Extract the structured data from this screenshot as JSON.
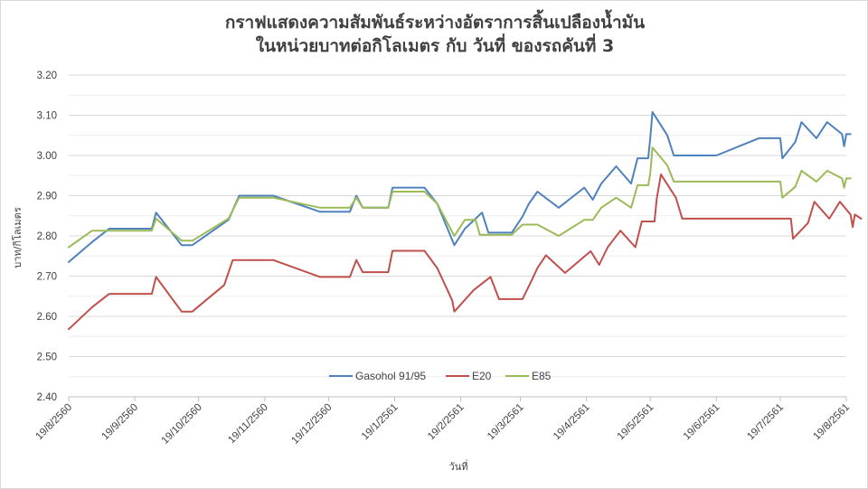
{
  "chart_data": {
    "type": "line",
    "title": [
      "กราฟแสดงความสัมพันธ์ระหว่างอัตราการสิ้นเปลืองน้ำมัน",
      "ในหน่วยบาทต่อกิโลเมตร  กับ วันที่  ของรถคันที่ 3"
    ],
    "xlabel": "วันที่",
    "ylabel": "บาท/กิโลเมตร",
    "ylim": [
      2.4,
      3.2
    ],
    "xlim": [
      "2017-08-19",
      "2018-08-19"
    ],
    "y_ticks": [
      "2.40",
      "2.50",
      "2.60",
      "2.70",
      "2.80",
      "2.90",
      "3.00",
      "3.10",
      "3.20"
    ],
    "x_ticks": [
      {
        "date": "2017-08-19",
        "label": "19/8/2560"
      },
      {
        "date": "2017-09-19",
        "label": "19/9/2560"
      },
      {
        "date": "2017-10-19",
        "label": "19/10/2560"
      },
      {
        "date": "2017-11-19",
        "label": "19/11/2560"
      },
      {
        "date": "2017-12-19",
        "label": "19/12/2560"
      },
      {
        "date": "2018-01-19",
        "label": "19/1/2561"
      },
      {
        "date": "2018-02-19",
        "label": "19/2/2561"
      },
      {
        "date": "2018-03-19",
        "label": "19/3/2561"
      },
      {
        "date": "2018-04-19",
        "label": "19/4/2561"
      },
      {
        "date": "2018-05-19",
        "label": "19/5/2561"
      },
      {
        "date": "2018-06-19",
        "label": "19/6/2561"
      },
      {
        "date": "2018-07-19",
        "label": "19/7/2561"
      },
      {
        "date": "2018-08-19",
        "label": "19/8/2561"
      }
    ],
    "grid": true,
    "legend_position": "bottom-center",
    "series": [
      {
        "name": "Gasohol 91/95",
        "color": "#4f81bd",
        "points": [
          [
            "2017-08-19",
            2.735
          ],
          [
            "2017-08-30",
            2.785
          ],
          [
            "2017-09-07",
            2.818
          ],
          [
            "2017-09-27",
            2.818
          ],
          [
            "2017-09-29",
            2.858
          ],
          [
            "2017-10-11",
            2.777
          ],
          [
            "2017-10-16",
            2.777
          ],
          [
            "2017-11-02",
            2.84
          ],
          [
            "2017-11-07",
            2.9
          ],
          [
            "2017-11-23",
            2.9
          ],
          [
            "2017-12-15",
            2.86
          ],
          [
            "2017-12-29",
            2.86
          ],
          [
            "2018-01-01",
            2.9
          ],
          [
            "2018-01-04",
            2.87
          ],
          [
            "2018-01-16",
            2.87
          ],
          [
            "2018-01-18",
            2.92
          ],
          [
            "2018-02-02",
            2.92
          ],
          [
            "2018-02-08",
            2.88
          ],
          [
            "2018-02-16",
            2.777
          ],
          [
            "2018-02-21",
            2.818
          ],
          [
            "2018-03-01",
            2.858
          ],
          [
            "2018-03-04",
            2.808
          ],
          [
            "2018-03-15",
            2.808
          ],
          [
            "2018-03-20",
            2.848
          ],
          [
            "2018-03-23",
            2.88
          ],
          [
            "2018-03-27",
            2.91
          ],
          [
            "2018-04-06",
            2.87
          ],
          [
            "2018-04-18",
            2.92
          ],
          [
            "2018-04-22",
            2.89
          ],
          [
            "2018-04-26",
            2.93
          ],
          [
            "2018-05-03",
            2.973
          ],
          [
            "2018-05-10",
            2.93
          ],
          [
            "2018-05-13",
            2.993
          ],
          [
            "2018-05-18",
            2.993
          ],
          [
            "2018-05-19",
            3.043
          ],
          [
            "2018-05-20",
            3.108
          ],
          [
            "2018-05-27",
            3.05
          ],
          [
            "2018-05-30",
            3.0
          ],
          [
            "2018-06-19",
            3.0
          ],
          [
            "2018-07-09",
            3.043
          ],
          [
            "2018-07-19",
            3.043
          ],
          [
            "2018-07-20",
            2.993
          ],
          [
            "2018-07-26",
            3.033
          ],
          [
            "2018-07-29",
            3.083
          ],
          [
            "2018-08-05",
            3.043
          ],
          [
            "2018-08-10",
            3.083
          ],
          [
            "2018-08-17",
            3.053
          ],
          [
            "2018-08-18",
            3.023
          ],
          [
            "2018-08-19",
            3.053
          ],
          [
            "2018-08-21",
            3.053
          ]
        ]
      },
      {
        "name": "E20",
        "color": "#c0504d",
        "points": [
          [
            "2017-08-19",
            2.568
          ],
          [
            "2017-08-30",
            2.623
          ],
          [
            "2017-09-07",
            2.656
          ],
          [
            "2017-09-27",
            2.656
          ],
          [
            "2017-09-29",
            2.698
          ],
          [
            "2017-10-11",
            2.612
          ],
          [
            "2017-10-16",
            2.612
          ],
          [
            "2017-10-31",
            2.678
          ],
          [
            "2017-11-04",
            2.74
          ],
          [
            "2017-11-23",
            2.74
          ],
          [
            "2017-12-15",
            2.698
          ],
          [
            "2017-12-29",
            2.698
          ],
          [
            "2018-01-01",
            2.74
          ],
          [
            "2018-01-04",
            2.71
          ],
          [
            "2018-01-16",
            2.71
          ],
          [
            "2018-01-18",
            2.763
          ],
          [
            "2018-02-02",
            2.763
          ],
          [
            "2018-02-08",
            2.72
          ],
          [
            "2018-02-15",
            2.64
          ],
          [
            "2018-02-16",
            2.612
          ],
          [
            "2018-02-25",
            2.665
          ],
          [
            "2018-03-05",
            2.698
          ],
          [
            "2018-03-09",
            2.643
          ],
          [
            "2018-03-20",
            2.643
          ],
          [
            "2018-03-24",
            2.686
          ],
          [
            "2018-03-27",
            2.72
          ],
          [
            "2018-03-31",
            2.752
          ],
          [
            "2018-04-09",
            2.708
          ],
          [
            "2018-04-21",
            2.762
          ],
          [
            "2018-04-25",
            2.728
          ],
          [
            "2018-04-29",
            2.772
          ],
          [
            "2018-05-05",
            2.813
          ],
          [
            "2018-05-12",
            2.772
          ],
          [
            "2018-05-15",
            2.836
          ],
          [
            "2018-05-21",
            2.836
          ],
          [
            "2018-05-22",
            2.892
          ],
          [
            "2018-05-24",
            2.953
          ],
          [
            "2018-05-31",
            2.895
          ],
          [
            "2018-06-03",
            2.843
          ],
          [
            "2018-07-24",
            2.843
          ],
          [
            "2018-07-25",
            2.793
          ],
          [
            "2018-08-01",
            2.832
          ],
          [
            "2018-08-04",
            2.885
          ],
          [
            "2018-08-11",
            2.843
          ],
          [
            "2018-08-16",
            2.885
          ],
          [
            "2018-08-21",
            2.853
          ],
          [
            "2018-08-22",
            2.822
          ],
          [
            "2018-08-23",
            2.853
          ],
          [
            "2018-08-26",
            2.843
          ]
        ]
      },
      {
        "name": "E85",
        "color": "#9bbb59",
        "points": [
          [
            "2017-08-19",
            2.772
          ],
          [
            "2017-08-30",
            2.813
          ],
          [
            "2017-09-27",
            2.813
          ],
          [
            "2017-09-29",
            2.843
          ],
          [
            "2017-10-11",
            2.788
          ],
          [
            "2017-10-16",
            2.788
          ],
          [
            "2017-11-02",
            2.843
          ],
          [
            "2017-11-07",
            2.895
          ],
          [
            "2017-11-23",
            2.895
          ],
          [
            "2017-12-15",
            2.87
          ],
          [
            "2017-12-29",
            2.87
          ],
          [
            "2018-01-01",
            2.895
          ],
          [
            "2018-01-04",
            2.87
          ],
          [
            "2018-01-16",
            2.87
          ],
          [
            "2018-01-18",
            2.91
          ],
          [
            "2018-02-02",
            2.91
          ],
          [
            "2018-02-08",
            2.88
          ],
          [
            "2018-02-16",
            2.8
          ],
          [
            "2018-02-21",
            2.84
          ],
          [
            "2018-02-26",
            2.84
          ],
          [
            "2018-02-28",
            2.803
          ],
          [
            "2018-03-15",
            2.803
          ],
          [
            "2018-03-20",
            2.828
          ],
          [
            "2018-03-27",
            2.828
          ],
          [
            "2018-04-06",
            2.8
          ],
          [
            "2018-04-18",
            2.84
          ],
          [
            "2018-04-22",
            2.84
          ],
          [
            "2018-04-26",
            2.87
          ],
          [
            "2018-05-03",
            2.895
          ],
          [
            "2018-05-10",
            2.87
          ],
          [
            "2018-05-13",
            2.926
          ],
          [
            "2018-05-18",
            2.926
          ],
          [
            "2018-05-19",
            2.955
          ],
          [
            "2018-05-20",
            3.02
          ],
          [
            "2018-05-27",
            2.975
          ],
          [
            "2018-05-30",
            2.935
          ],
          [
            "2018-07-19",
            2.935
          ],
          [
            "2018-07-20",
            2.895
          ],
          [
            "2018-07-26",
            2.922
          ],
          [
            "2018-07-29",
            2.962
          ],
          [
            "2018-08-05",
            2.935
          ],
          [
            "2018-08-10",
            2.962
          ],
          [
            "2018-08-17",
            2.943
          ],
          [
            "2018-08-18",
            2.92
          ],
          [
            "2018-08-19",
            2.943
          ],
          [
            "2018-08-21",
            2.943
          ]
        ]
      }
    ]
  }
}
